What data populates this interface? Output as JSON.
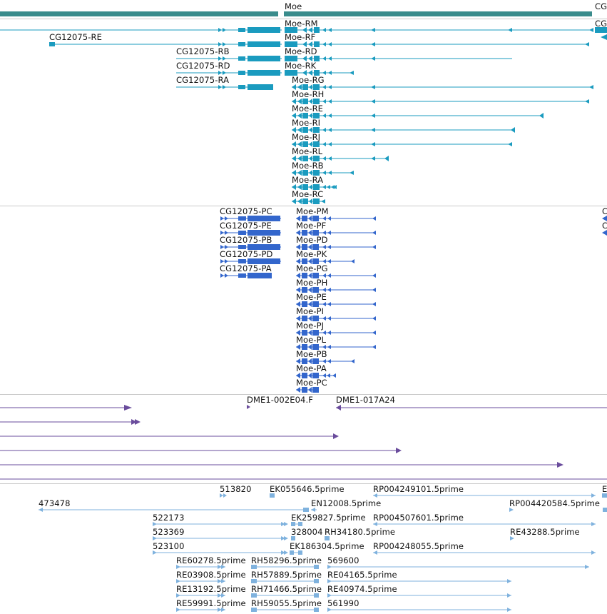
{
  "palette": {
    "gene": "#3a8c8c",
    "transcript": "#1a9bbf",
    "protein": "#3366cc",
    "clone": "#6a4c9c",
    "est": "#7fb2de",
    "separator": "#c9c9c9"
  },
  "tracks": {
    "genes": {
      "labels": [
        "Moe",
        "CG"
      ]
    },
    "transcripts": {
      "labels": [
        "Moe-RM",
        "CG",
        "CG12075-RE",
        "Moe-RF",
        "CG12075-RB",
        "Moe-RD",
        "CG12075-RD",
        "Moe-RK",
        "CG12075-RA",
        "Moe-RG",
        "Moe-RH",
        "Moe-RE",
        "Moe-RI",
        "Moe-RJ",
        "Moe-RL",
        "Moe-RB",
        "Moe-RA",
        "Moe-RC"
      ]
    },
    "proteins": {
      "labels": [
        "CG12075-PC",
        "Moe-PM",
        "C",
        "CG12075-PE",
        "Moe-PF",
        "C",
        "CG12075-PB",
        "Moe-PD",
        "CG12075-PD",
        "Moe-PK",
        "CG12075-PA",
        "Moe-PG",
        "Moe-PH",
        "Moe-PE",
        "Moe-PI",
        "Moe-PJ",
        "Moe-PL",
        "Moe-PB",
        "Moe-PA",
        "Moe-PC"
      ]
    },
    "clones": {
      "labels": [
        "DME1-002E04.F",
        "DME1-017A24"
      ]
    },
    "ests": {
      "labels": [
        "513820",
        "EK055646.5prime",
        "RP004249101.5prime",
        "E",
        "473478",
        "EN12008.5prime",
        "RP004420584.5prime",
        "522173",
        "EK259827.5prime",
        "RP004507601.5prime",
        "523369",
        "328004",
        "RH34180.5prime",
        "RE43288.5prime",
        "523100",
        "EK186304.5prime",
        "RP004248055.5prime",
        "RE60278.5prime",
        "RH58296.5prime",
        "569600",
        "RE03908.5prime",
        "RH57889.5prime",
        "RE04165.5prime",
        "RE13192.5prime",
        "RH71466.5prime",
        "RE40974.5prime",
        "RE59991.5prime",
        "RH59055.5prime",
        "561990"
      ]
    }
  }
}
